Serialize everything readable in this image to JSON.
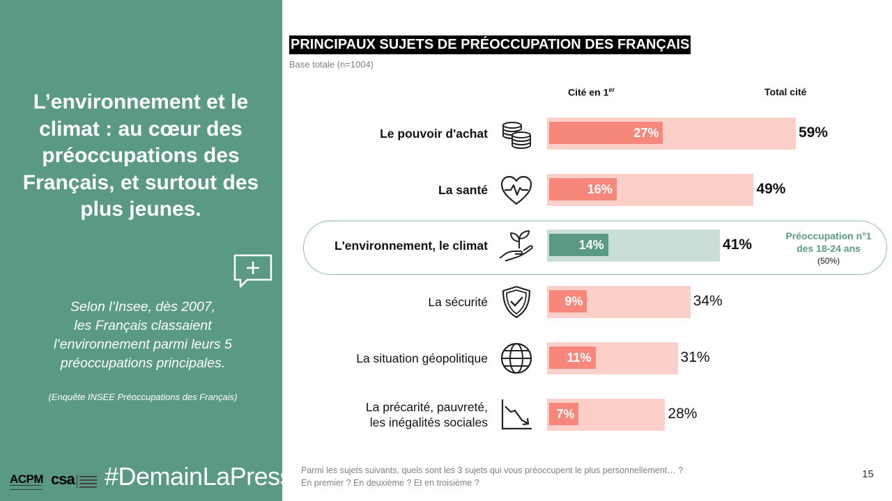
{
  "left_panel": {
    "headline_lines": [
      "L’environnement et le",
      "climat : au cœur des",
      "préoccupations des",
      "Français, et surtout des",
      "plus jeunes."
    ],
    "quote_lines": [
      "Selon l’Insee, dès 2007,",
      "les Français classaient",
      "l’environnement parmi leurs 5",
      "préoccupations principales."
    ],
    "source": "(Enquête INSEE Préoccupations des Français)",
    "hashtag": "#DemainLaPresse",
    "logo_acpm": "ACPM",
    "logo_csa": "csa"
  },
  "chart_data": {
    "type": "bar",
    "title": "PRINCIPAUX SUJETS DE PRÉOCCUPATION DES FRANÇAIS",
    "subtitle": "Base totale (n=1004)",
    "header_first": "Cité en 1",
    "header_first_sup": "er",
    "header_total": "Total cité",
    "categories": [
      "Le pouvoir d'achat",
      "La santé",
      "L'environnement, le climat",
      "La sécurité",
      "La situation géopolitique",
      "La précarité, pauvreté, les inégalités sociales"
    ],
    "category_lines": [
      [
        "Le pouvoir d'achat"
      ],
      [
        "La santé"
      ],
      [
        "L'environnement, le climat"
      ],
      [
        "La sécurité"
      ],
      [
        "La situation géopolitique"
      ],
      [
        "La précarité, pauvreté,",
        "les inégalités sociales"
      ]
    ],
    "icons": [
      "coins-icon",
      "heart-pulse-icon",
      "hand-plant-icon",
      "shield-check-icon",
      "globe-icon",
      "chart-down-icon"
    ],
    "series": [
      {
        "name": "Cité en 1er",
        "values": [
          27,
          16,
          14,
          9,
          11,
          7
        ],
        "labels": [
          "27%",
          "16%",
          "14%",
          "9%",
          "11%",
          "7%"
        ]
      },
      {
        "name": "Total cité",
        "values": [
          59,
          49,
          41,
          34,
          31,
          28
        ],
        "labels": [
          "59%",
          "49%",
          "41%",
          "34%",
          "31%",
          "28%"
        ]
      }
    ],
    "bold_total_indices": [
      0,
      1,
      2
    ],
    "highlight_index": 2,
    "colors": {
      "total": "#fccfc8",
      "first": "#f6877a",
      "total_highlight": "#c8ded6",
      "first_highlight": "#5a9a85"
    },
    "ylim": [
      0,
      100
    ],
    "callout": {
      "line1": "Préoccupation n°1",
      "line2": "des 18-24 ans",
      "sub": "(50%)"
    }
  },
  "footer": {
    "question_line1": "Parmi les sujets suivants, quels sont les 3 sujets qui vous préoccupent le plus personnellement… ?",
    "question_line2": "En premier ? En deuxième ? Et en troisième ?",
    "page_number": "15"
  }
}
